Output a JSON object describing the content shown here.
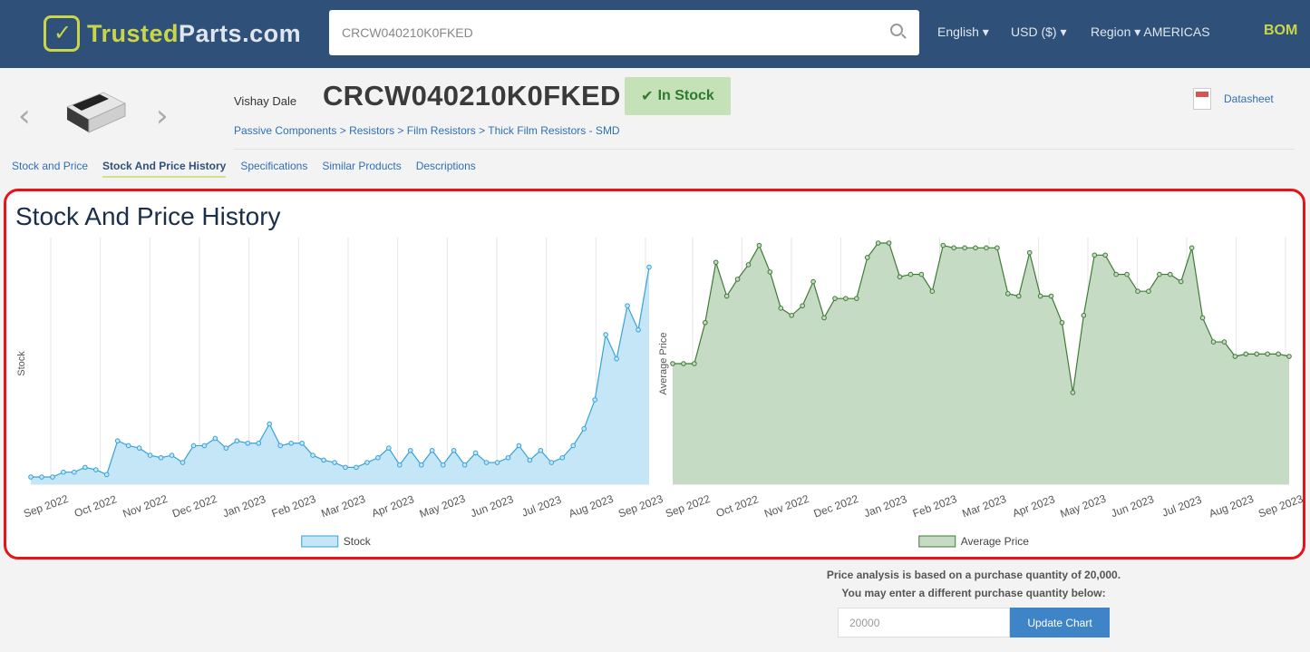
{
  "header": {
    "logo_primary": "Trusted",
    "logo_secondary": "Parts",
    "logo_suffix": ".com",
    "search_value": "CRCW040210K0FKED",
    "language": "English",
    "currency": "USD ($)",
    "region": "Region",
    "region_value": "AMERICAS",
    "bom": "BOM",
    "colors": {
      "bar": "#2f5078",
      "accent": "#c9d64a"
    }
  },
  "part": {
    "manufacturer": "Vishay Dale",
    "number": "CRCW040210K0FKED",
    "stock_status": "In Stock",
    "breadcrumb": [
      "Passive Components",
      "Resistors",
      "Film Resistors",
      "Thick Film Resistors - SMD"
    ],
    "datasheet": "Datasheet"
  },
  "tabs": [
    {
      "label": "Stock and Price",
      "active": false
    },
    {
      "label": "Stock And Price History",
      "active": true
    },
    {
      "label": "Specifications",
      "active": false
    },
    {
      "label": "Similar Products",
      "active": false
    },
    {
      "label": "Descriptions",
      "active": false
    }
  ],
  "section_title": "Stock And Price History",
  "chart_data": [
    {
      "type": "area",
      "ylabel": "Stock",
      "legend": "Stock",
      "legend_position": "bottom",
      "y_ticks_visible": false,
      "grid": "vertical",
      "color": "#36a2d9",
      "fill": "#c5e6f6",
      "x_ticks": [
        "Sep 2022",
        "Oct 2022",
        "Nov 2022",
        "Dec 2022",
        "Jan 2023",
        "Feb 2023",
        "Mar 2023",
        "Apr 2023",
        "May 2023",
        "Jun 2023",
        "Jul 2023",
        "Aug 2023",
        "Sep 2023"
      ],
      "ylim": [
        0,
        100
      ],
      "values": [
        3,
        3,
        3,
        5,
        5,
        7,
        6,
        4,
        18,
        16,
        15,
        12,
        11,
        12,
        9,
        16,
        16,
        19,
        15,
        18,
        17,
        17,
        25,
        16,
        17,
        17,
        12,
        10,
        9,
        7,
        7,
        9,
        11,
        15,
        8,
        14,
        8,
        14,
        8,
        14,
        8,
        13,
        9,
        9,
        11,
        16,
        10,
        14,
        9,
        11,
        16,
        23,
        35,
        62,
        52,
        74,
        64,
        90
      ]
    },
    {
      "type": "area",
      "ylabel": "Average Price",
      "legend": "Average Price",
      "legend_position": "bottom",
      "y_ticks_visible": false,
      "grid": "vertical",
      "color": "#3f7a36",
      "fill": "#c6dbc3",
      "x_ticks": [
        "Sep 2022",
        "Oct 2022",
        "Nov 2022",
        "Dec 2022",
        "Jan 2023",
        "Feb 2023",
        "Mar 2023",
        "Apr 2023",
        "May 2023",
        "Jun 2023",
        "Jul 2023",
        "Aug 2023",
        "Sep 2023"
      ],
      "ylim": [
        0,
        100
      ],
      "values": [
        50,
        50,
        50,
        67,
        92,
        78,
        85,
        91,
        99,
        88,
        73,
        70,
        74,
        84,
        69,
        77,
        77,
        77,
        94,
        100,
        100,
        86,
        87,
        87,
        80,
        99,
        98,
        98,
        98,
        98,
        98,
        79,
        78,
        96,
        78,
        78,
        67,
        38,
        70,
        95,
        95,
        87,
        87,
        80,
        80,
        87,
        87,
        84,
        98,
        69,
        59,
        59,
        53,
        54,
        54,
        54,
        54,
        53
      ]
    }
  ],
  "price_note": {
    "line1": "Price analysis is based on a purchase quantity of 20,000.",
    "line2": "You may enter a different purchase quantity below:",
    "quantity": "20000",
    "button": "Update Chart"
  }
}
